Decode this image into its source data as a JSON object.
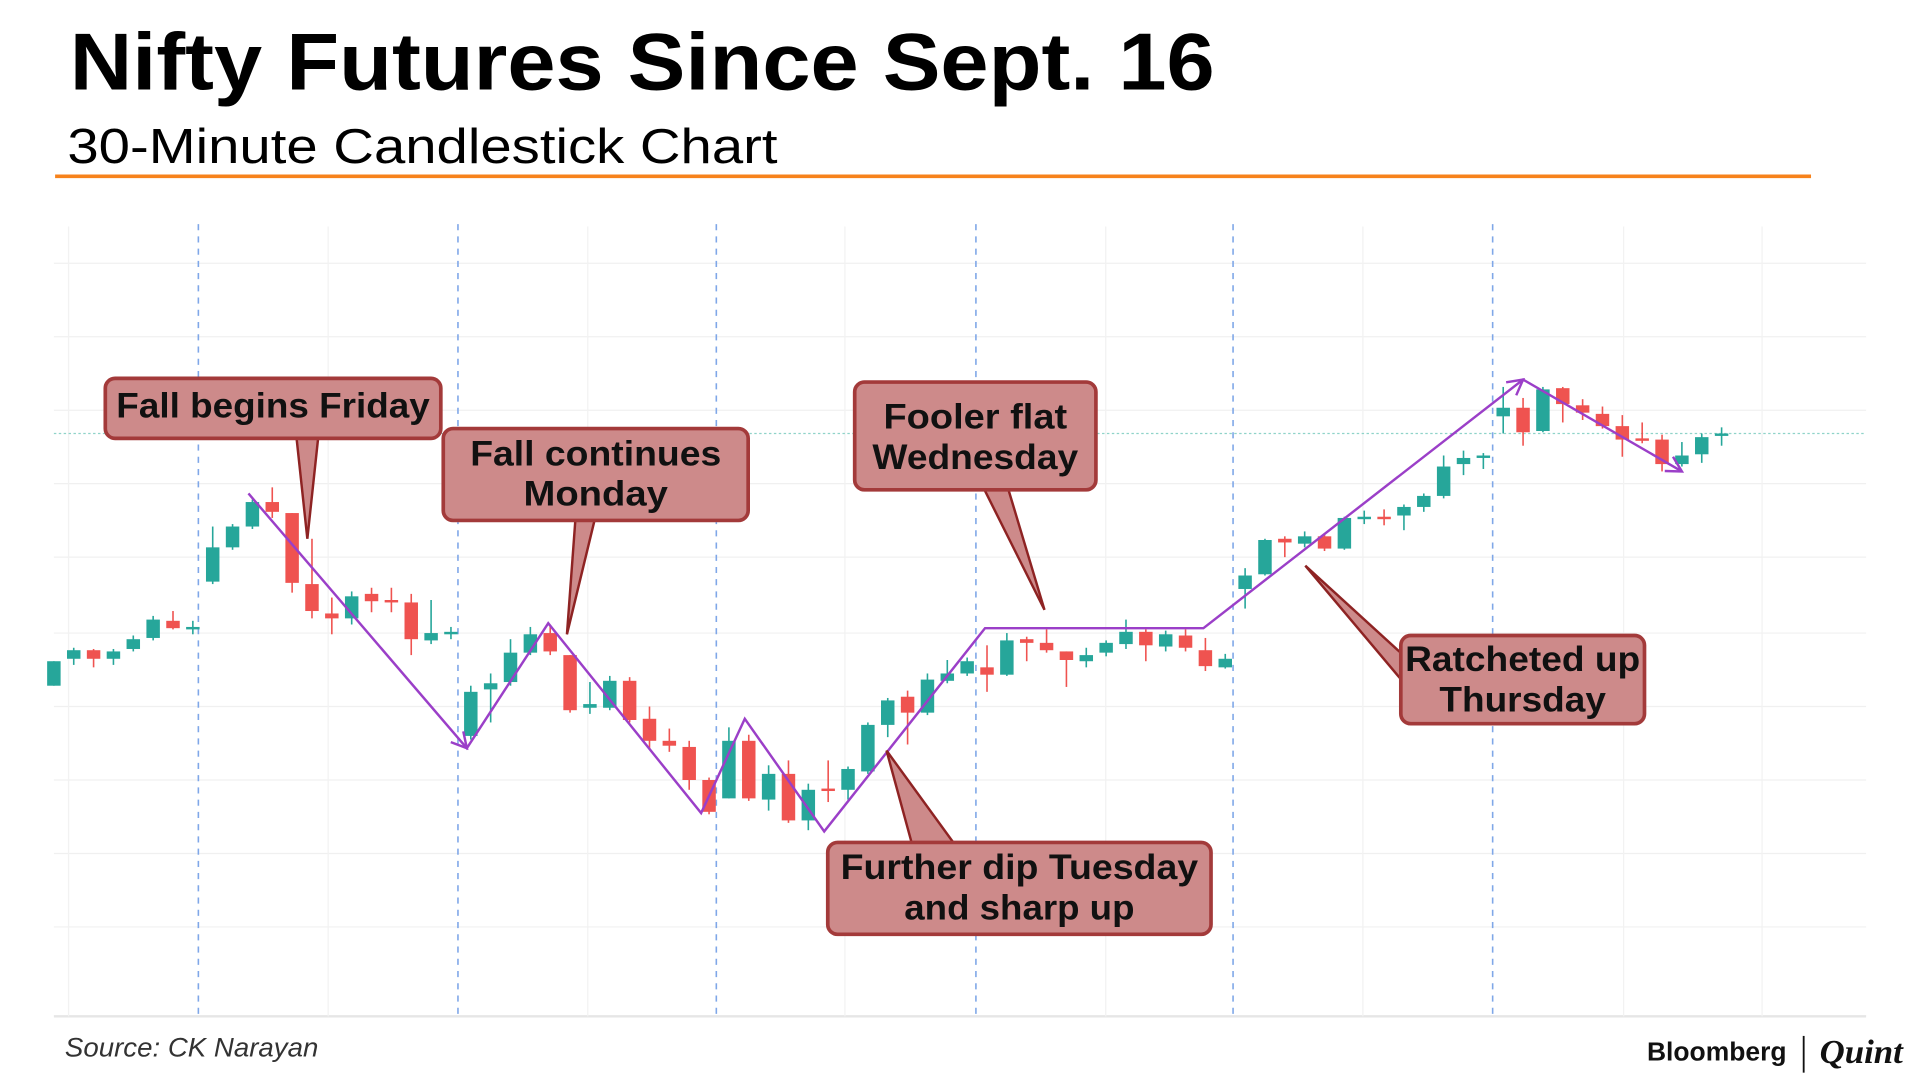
{
  "header": {
    "title": "Nifty Futures Since Sept. 16",
    "subtitle": "30-Minute Candlestick Chart",
    "rule_color": "#f7821b"
  },
  "footer": {
    "source": "Source: CK Narayan",
    "logo_left": "Bloomberg",
    "logo_right": "Quint"
  },
  "chart_data": {
    "type": "candlestick",
    "title": "Nifty Futures Since Sept. 16",
    "subtitle": "30-Minute Candlestick Chart",
    "value_units": "relative price level (no axis labels shown)",
    "grid": true,
    "colors": {
      "up": "#26a69a",
      "down": "#ef5350",
      "trendline": "#9b3fc8",
      "day_separator": "#7fa7e8",
      "reference_line": "#8fd3c9"
    },
    "candle_format": [
      "open",
      "high",
      "low",
      "close"
    ],
    "sessions": [
      {
        "candles": [
          [
            340,
            360,
            340,
            360
          ],
          [
            362,
            371,
            357,
            369
          ],
          [
            369,
            370,
            355,
            362
          ],
          [
            362,
            370,
            357,
            368
          ],
          [
            370,
            381,
            368,
            378
          ],
          [
            379,
            397,
            377,
            394
          ],
          [
            393,
            401,
            386,
            387
          ],
          [
            387,
            393,
            382,
            388
          ]
        ]
      },
      {
        "candles": [
          [
            425,
            470,
            423,
            453
          ],
          [
            453,
            472,
            451,
            470
          ],
          [
            470,
            492,
            468,
            490
          ],
          [
            490,
            502,
            477,
            482
          ],
          [
            481,
            481,
            416,
            424
          ],
          [
            423,
            460,
            395,
            401
          ],
          [
            399,
            412,
            382,
            395
          ],
          [
            395,
            417,
            390,
            413
          ],
          [
            415,
            420,
            400,
            409
          ],
          [
            410,
            420,
            400,
            408
          ],
          [
            408,
            415,
            365,
            378
          ],
          [
            377,
            410,
            374,
            383
          ],
          [
            383,
            388,
            378,
            384
          ]
        ]
      },
      {
        "candles": [
          [
            299,
            340,
            296,
            335
          ],
          [
            337,
            350,
            310,
            342
          ],
          [
            343,
            378,
            340,
            367
          ],
          [
            367,
            388,
            365,
            382
          ],
          [
            383,
            390,
            365,
            368
          ],
          [
            365,
            365,
            318,
            320
          ],
          [
            322,
            343,
            317,
            325
          ],
          [
            322,
            348,
            320,
            344
          ],
          [
            344,
            347,
            310,
            312
          ],
          [
            313,
            323,
            288,
            295
          ],
          [
            295,
            305,
            286,
            291
          ],
          [
            290,
            295,
            255,
            263
          ],
          [
            263,
            265,
            235,
            237
          ]
        ]
      },
      {
        "candles": [
          [
            248,
            306,
            248,
            295
          ],
          [
            295,
            300,
            246,
            248
          ],
          [
            247,
            275,
            238,
            268
          ],
          [
            268,
            279,
            228,
            230
          ],
          [
            230,
            260,
            222,
            255
          ],
          [
            256,
            279,
            245,
            254
          ],
          [
            255,
            274,
            247,
            272
          ],
          [
            270,
            310,
            268,
            308
          ],
          [
            308,
            330,
            298,
            328
          ],
          [
            331,
            336,
            292,
            318
          ],
          [
            318,
            350,
            316,
            345
          ],
          [
            344,
            361,
            342,
            350
          ],
          [
            350,
            363,
            348,
            360
          ]
        ]
      },
      {
        "candles": [
          [
            355,
            373,
            335,
            349
          ],
          [
            349,
            383,
            348,
            377
          ],
          [
            378,
            380,
            360,
            375
          ],
          [
            375,
            386,
            367,
            369
          ],
          [
            368,
            368,
            339,
            361
          ],
          [
            360,
            371,
            355,
            365
          ],
          [
            367,
            377,
            364,
            375
          ],
          [
            374,
            394,
            370,
            384
          ],
          [
            384,
            386,
            360,
            373
          ],
          [
            372,
            385,
            368,
            382
          ],
          [
            381,
            386,
            368,
            371
          ],
          [
            369,
            379,
            352,
            356
          ],
          [
            355,
            366,
            354,
            362
          ]
        ]
      },
      {
        "candles": [
          [
            419,
            436,
            403,
            430
          ],
          [
            431,
            460,
            430,
            459
          ],
          [
            460,
            462,
            445,
            457
          ],
          [
            456,
            466,
            453,
            462
          ],
          [
            462,
            464,
            450,
            452
          ],
          [
            452,
            478,
            451,
            477
          ],
          [
            477,
            483,
            472,
            478
          ],
          [
            478,
            484,
            471,
            477
          ],
          [
            479,
            488,
            467,
            486
          ],
          [
            486,
            497,
            482,
            495
          ],
          [
            495,
            528,
            493,
            519
          ],
          [
            521,
            532,
            512,
            526
          ],
          [
            526,
            530,
            517,
            528
          ]
        ]
      },
      {
        "candles": [
          [
            560,
            584,
            546,
            567
          ],
          [
            567,
            575,
            536,
            547
          ],
          [
            548,
            584,
            547,
            582
          ],
          [
            583,
            584,
            555,
            570
          ],
          [
            569,
            574,
            557,
            563
          ],
          [
            562,
            568,
            550,
            552
          ],
          [
            552,
            561,
            527,
            541
          ],
          [
            542,
            555,
            538,
            540
          ],
          [
            541,
            545,
            515,
            521
          ],
          [
            521,
            539,
            519,
            528
          ],
          [
            529,
            546,
            522,
            543
          ],
          [
            545,
            551,
            536,
            546
          ]
        ]
      }
    ],
    "reference_level": 546,
    "trendline": [
      [
        9.8,
        497
      ],
      [
        20.8,
        289
      ],
      [
        24.9,
        391
      ],
      [
        32.6,
        236
      ],
      [
        34.8,
        313
      ],
      [
        38.8,
        221
      ],
      [
        46.9,
        387
      ],
      [
        57.9,
        387
      ],
      [
        74,
        590
      ],
      [
        82,
        515
      ]
    ],
    "annotations": [
      {
        "lines": [
          "Fall begins Friday"
        ]
      },
      {
        "lines": [
          "Fall continues",
          "Monday"
        ]
      },
      {
        "lines": [
          "Fooler flat",
          "Wednesday"
        ]
      },
      {
        "lines": [
          "Further dip Tuesday",
          "and sharp up"
        ]
      },
      {
        "lines": [
          "Ratcheted up",
          "Thursday"
        ]
      }
    ]
  }
}
